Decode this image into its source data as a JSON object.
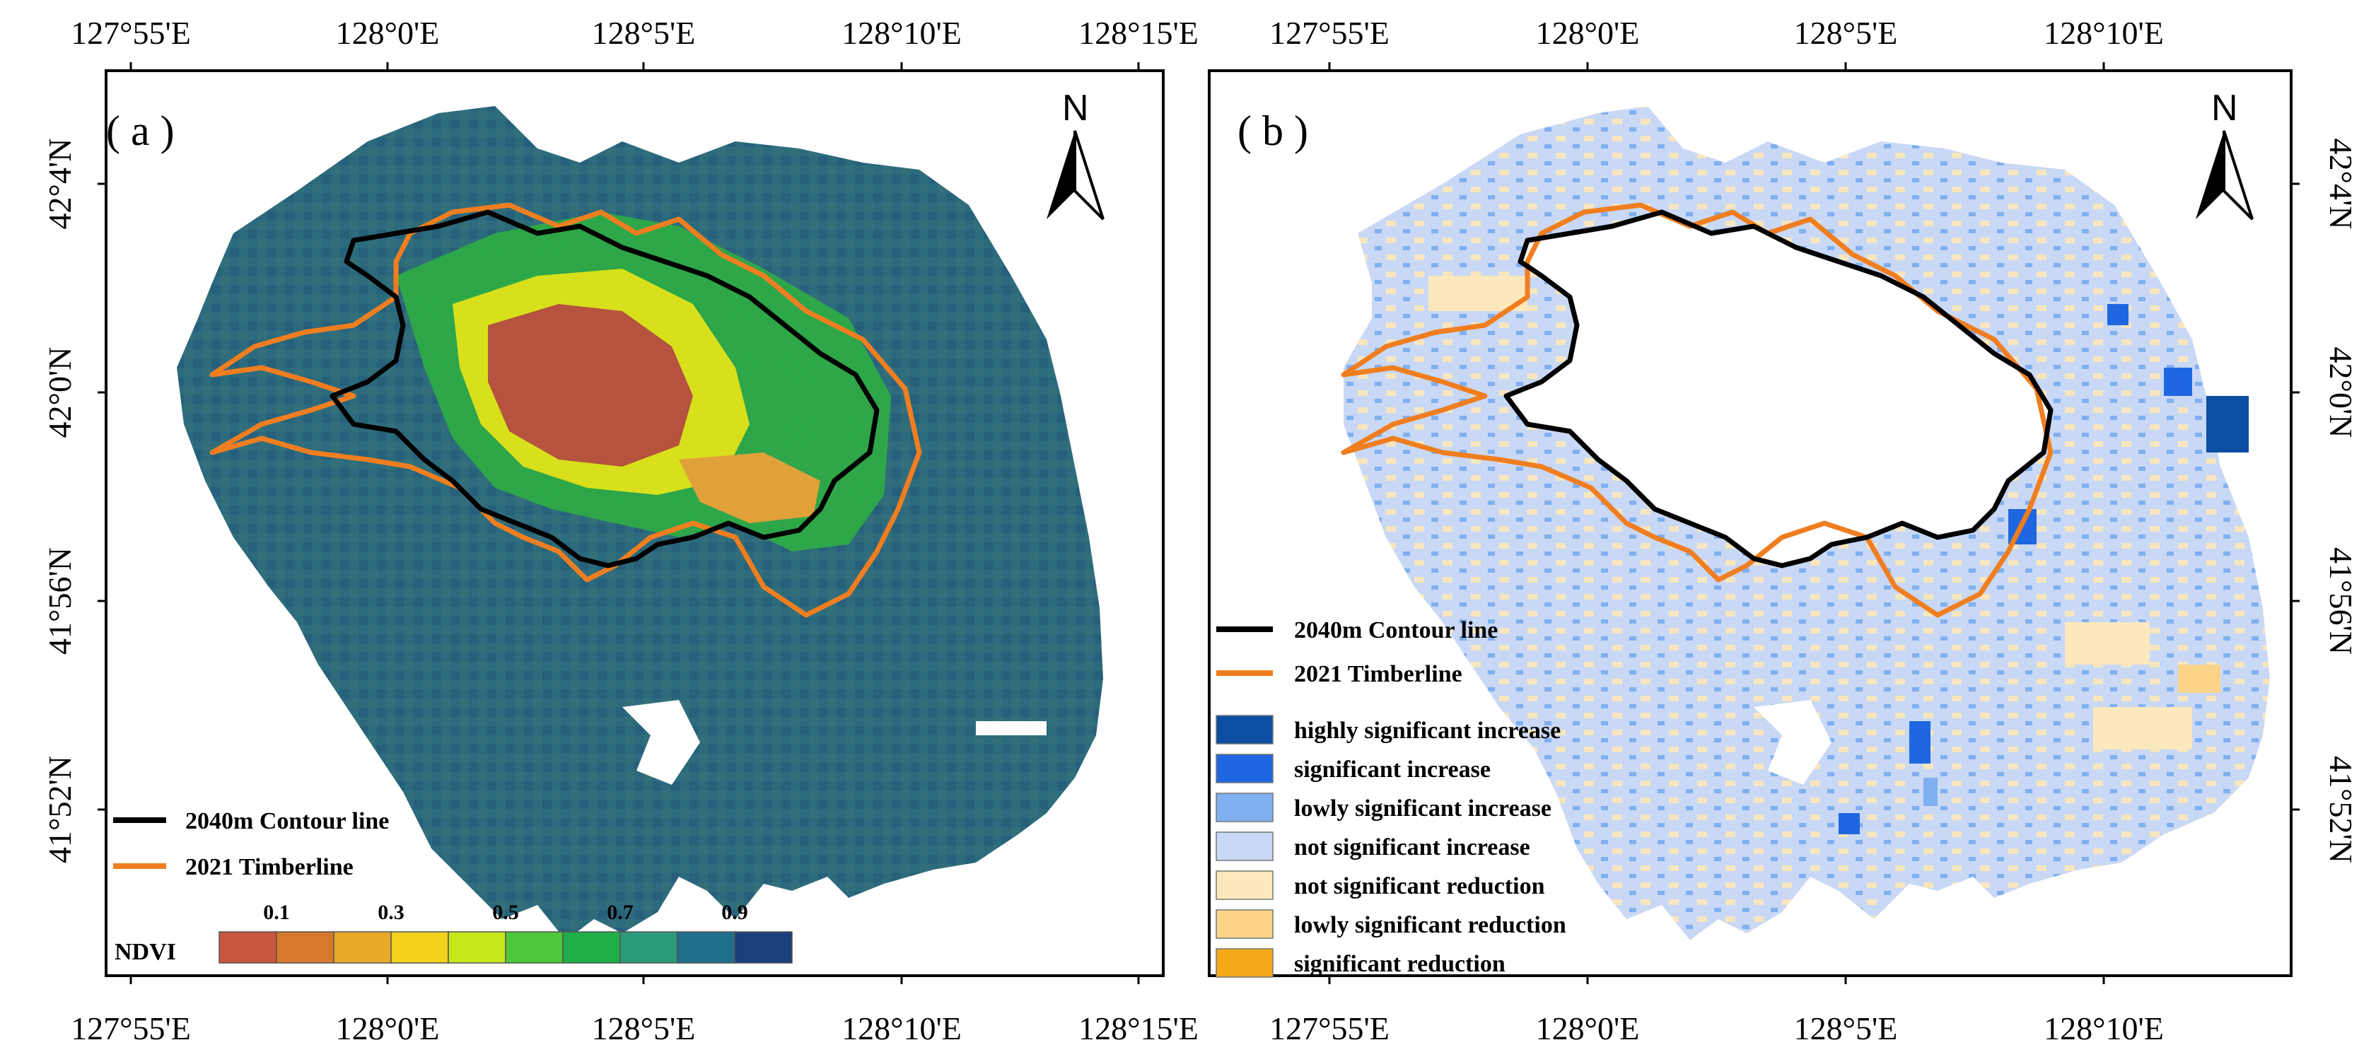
{
  "panel_a": {
    "label": "( a )",
    "top_lon_ticks": [
      "127°55'E",
      "128°0'E",
      "128°5'E",
      "128°10'E",
      "128°15'E"
    ],
    "bottom_lon_ticks": [
      "127°55'E",
      "128°0'E",
      "128°5'E",
      "128°10'E",
      "128°15'E"
    ],
    "left_lat_ticks": [
      "42°4'N",
      "42°0'N",
      "41°56'N",
      "41°52'N"
    ],
    "legend": {
      "contour": "2040m Contour line",
      "timberline": "2021 Timberline"
    },
    "ndvi": {
      "title": "NDVI",
      "ticks": [
        "0.1",
        "0.3",
        "0.5",
        "0.7",
        "0.9"
      ],
      "colors": [
        "#c8553d",
        "#d9782a",
        "#e8a92a",
        "#f2d21c",
        "#c6e81a",
        "#4dc83a",
        "#1fae4a",
        "#2a9a7a",
        "#1f6f8b",
        "#1b3f7a"
      ]
    }
  },
  "panel_b": {
    "label": "( b )",
    "top_lon_ticks": [
      "127°55'E",
      "128°0'E",
      "128°5'E",
      "128°10'E"
    ],
    "bottom_lon_ticks": [
      "127°55'E",
      "128°0'E",
      "128°5'E",
      "128°10'E"
    ],
    "right_lat_ticks": [
      "42°4'N",
      "42°0'N",
      "41°56'N",
      "41°52'N"
    ],
    "legend": {
      "contour": "2040m Contour line",
      "timberline": "2021 Timberline",
      "classes": [
        {
          "label": "highly significant increase",
          "color": "#0b4ea2"
        },
        {
          "label": "significant increase",
          "color": "#1f67e0"
        },
        {
          "label": "lowly significant increase",
          "color": "#7fb0f0"
        },
        {
          "label": "not significant increase",
          "color": "#c8d8f6"
        },
        {
          "label": "not significant reduction",
          "color": "#fbe9bd"
        },
        {
          "label": "lowly significant reduction",
          "color": "#fbd48a"
        },
        {
          "label": "significant reduction",
          "color": "#f5a818"
        }
      ]
    }
  },
  "north_label": "N",
  "colors": {
    "contour_line": "#000000",
    "timberline": "#f07e20",
    "map_background_a": "#2f6b7c",
    "map_background_b": "#c8d8f6"
  }
}
